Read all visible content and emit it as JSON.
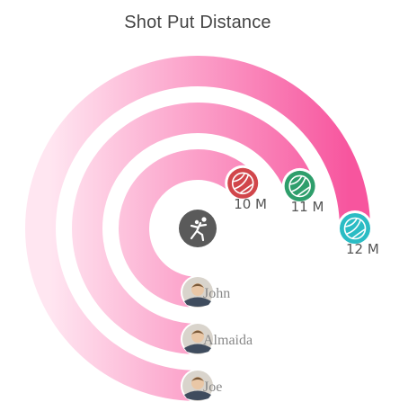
{
  "title": "Shot Put Distance",
  "colors": {
    "gradient_start": "#ffe6f1",
    "gradient_end": "#f7559e",
    "center_icon_bg": "#5a5a5a",
    "label_text": "#555555",
    "name_text": "#888888"
  },
  "center_icon": "shot-put-athlete-icon",
  "chart_data": {
    "type": "radial-bar",
    "title": "Shot Put Distance",
    "max": 12,
    "unit": "M",
    "categories": [
      "Joe",
      "Almaida",
      "John"
    ],
    "values": [
      12,
      11,
      10
    ],
    "end_labels": [
      "12 M",
      "11 M",
      "10 M"
    ],
    "point_icons": [
      "volleyball-icon",
      "volleyball-icon",
      "volleyball-icon"
    ],
    "point_colors": [
      "#2bbcc4",
      "#2e9e6b",
      "#d1464b"
    ],
    "avatar_icons": [
      "person-avatar-icon",
      "person-avatar-icon",
      "person-avatar-icon"
    ]
  }
}
